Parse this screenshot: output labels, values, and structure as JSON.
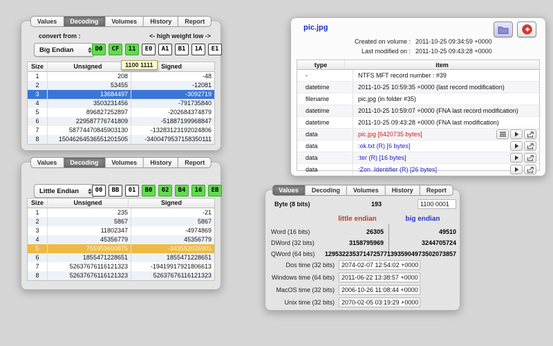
{
  "tabs": [
    "Values",
    "Decoding",
    "Volumes",
    "History",
    "Report"
  ],
  "colors": {
    "byte_highlight_bg": "#62da50",
    "byte_highlight_border": "#3fa32f",
    "selection_blue": "#3b76d7",
    "selection_blue_text": "#ffffff",
    "selection_orange": "#eeba45",
    "selection_orange_text": "#fdf3d2",
    "title_blue": "#1b2ec0",
    "item_red": "#cc2020",
    "item_blue": "#2121cc",
    "little_endian_red": "#c03a28",
    "big_endian_blue": "#2a35c8"
  },
  "decoder_big": {
    "active_tab": "Decoding",
    "convert_from_label": "convert from :",
    "weight_hint": "<- high weight low ->",
    "endianness": "Big Endian",
    "tooltip": "1100 1111",
    "bytes": [
      {
        "hex": "D0",
        "highlight": true
      },
      {
        "hex": "CF",
        "highlight": true
      },
      {
        "hex": "11",
        "highlight": true
      },
      {
        "hex": "E0",
        "highlight": false
      },
      {
        "hex": "A1",
        "highlight": false
      },
      {
        "hex": "B1",
        "highlight": false
      },
      {
        "hex": "1A",
        "highlight": false
      },
      {
        "hex": "E1",
        "highlight": false
      }
    ],
    "table": {
      "headers": [
        "Size",
        "Unsigned",
        "Signed"
      ],
      "selected_row": 3,
      "selection_color": "#3b76d7",
      "selection_text": "#ffffff",
      "rows": [
        [
          "1",
          "208",
          "-48"
        ],
        [
          "2",
          "53455",
          "-12081"
        ],
        [
          "3",
          "13684497",
          "-3092719"
        ],
        [
          "4",
          "3503231456",
          "-791735840"
        ],
        [
          "5",
          "896827252897",
          "-202684374879"
        ],
        [
          "6",
          "229587776741809",
          "-51887199968847"
        ],
        [
          "7",
          "58774470845903130",
          "-13283123192024806"
        ],
        [
          "8",
          "15046264536551201505",
          "-3400479537158350111"
        ]
      ]
    }
  },
  "decoder_little": {
    "active_tab": "Decoding",
    "endianness": "Little Endian",
    "bytes": [
      {
        "hex": "00",
        "highlight": false
      },
      {
        "hex": "BB",
        "highlight": false
      },
      {
        "hex": "01",
        "highlight": false
      },
      {
        "hex": "B0",
        "highlight": true
      },
      {
        "hex": "02",
        "highlight": true
      },
      {
        "hex": "B4",
        "highlight": true
      },
      {
        "hex": "16",
        "highlight": true
      },
      {
        "hex": "EB",
        "highlight": true
      }
    ],
    "table": {
      "headers": [
        "Size",
        "Unsigned",
        "Signed"
      ],
      "selected_row": 5,
      "selection_color": "#eeba45",
      "selection_text": "#fdf3d2",
      "rows": [
        [
          "1",
          "235",
          "-21"
        ],
        [
          "2",
          "5867",
          "5867"
        ],
        [
          "3",
          "11802347",
          "-4974869"
        ],
        [
          "4",
          "45356779",
          "45356779"
        ],
        [
          "5",
          "755959600875",
          "-343552026901"
        ],
        [
          "6",
          "1855471228651",
          "1855471228651"
        ],
        [
          "7",
          "52637676116121323",
          "-19419917921806613"
        ],
        [
          "8",
          "52637676116121323",
          "52637676116121323"
        ]
      ]
    }
  },
  "file_inspector": {
    "title": "pic.jpg",
    "created_label": "Created on volume :",
    "created_value": "2011-10-25 09:34:59 +0000",
    "modified_label": "Last modified on :",
    "modified_value": "2011-10-25 09:43:28 +0000",
    "toolbar_icons": [
      "folder-icon",
      "back-arrow-icon"
    ],
    "columns": [
      "type",
      "item"
    ],
    "rows": [
      {
        "type": "-",
        "item": "NTFS MFT record number : #39",
        "color": "#111111",
        "buttons": []
      },
      {
        "type": "datetime",
        "item": "2011-10-25 10:59:35 +0000 (last record modification)",
        "color": "#111111",
        "buttons": []
      },
      {
        "type": "filename",
        "item": "pic.jpg (in folder #35)",
        "color": "#111111",
        "buttons": []
      },
      {
        "type": "datetime",
        "item": "2011-10-25 10:59:07 +0000 (FNA last record modification)",
        "color": "#111111",
        "buttons": []
      },
      {
        "type": "datetime",
        "item": "2011-10-25 09:43:28 +0000 (FNA last modification)",
        "color": "#111111",
        "buttons": []
      },
      {
        "type": "data",
        "item": "pic.jpg [6420735 bytes]",
        "color": "#cc2020",
        "buttons": [
          "list",
          "play",
          "export"
        ]
      },
      {
        "type": "data",
        "item": ":ok.txt (R)  [6 bytes]",
        "color": "#2121cc",
        "buttons": [
          "play",
          "export"
        ]
      },
      {
        "type": "data",
        "item": ":ter (R)  [16 bytes]",
        "color": "#2121cc",
        "buttons": [
          "play",
          "export"
        ]
      },
      {
        "type": "data",
        "item": ":Zon .Identifier (R)  [26 bytes]",
        "color": "#2121cc",
        "buttons": [
          "play",
          "export"
        ]
      }
    ]
  },
  "values_panel": {
    "active_tab": "Values",
    "byte_label": "Byte (8 bits)",
    "byte_value": "193",
    "byte_binary": "1100 0001",
    "le_header": "little endian",
    "be_header": "big endian",
    "word_rows": [
      {
        "label": "Word (16 bits)",
        "le": "26305",
        "be": "49510"
      },
      {
        "label": "DWord (32 bits)",
        "le": "3158795969",
        "be": "3244705724"
      },
      {
        "label": "QWord (64 bits)",
        "le": "129532235371472577",
        "be": "13935904973502073857"
      }
    ],
    "time_rows": [
      {
        "label": "Dos time (32 bits)",
        "value": "2074-02-07 12:54:02 +0000"
      },
      {
        "label": "Windows time (64 bits)",
        "value": "2011-06-22 13:38:57 +0000"
      },
      {
        "label": "MacOS time (32 bits)",
        "value": "2006-10-26 11:08:44 +0000"
      },
      {
        "label": "Unix time (32 bits)",
        "value": "2070-02-05 03:19:29 +0000"
      }
    ]
  }
}
